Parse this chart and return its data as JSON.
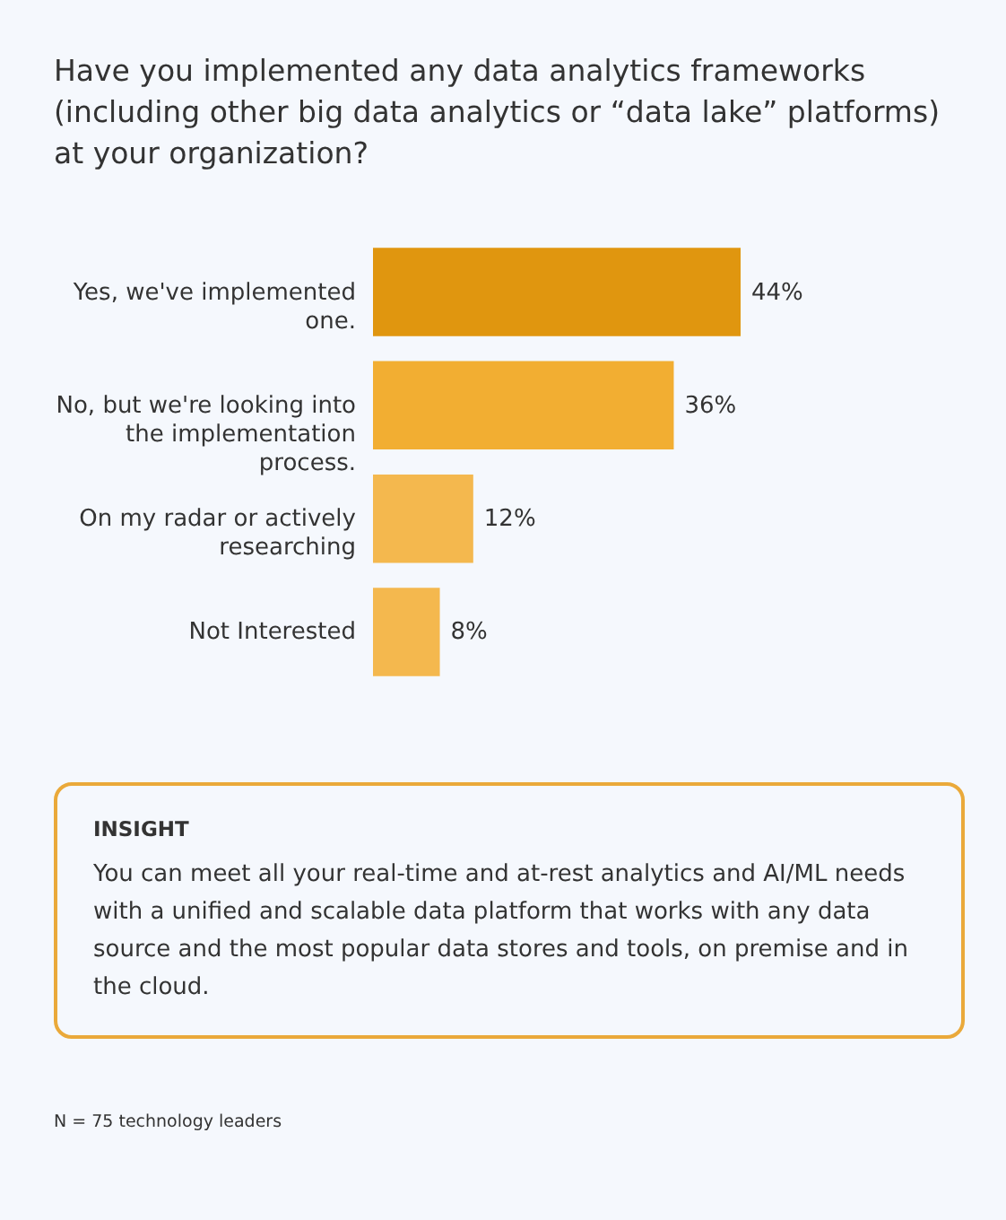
{
  "chart_data": {
    "type": "bar",
    "orientation": "horizontal",
    "title": "Have you implemented any data analytics frameworks (including other big data analytics or “data lake” platforms) at your organization?",
    "categories": [
      "Yes, we've implemented one.",
      "No, but we're looking into the implementation process.",
      "On my radar or actively researching",
      "Not Interested"
    ],
    "values": [
      44,
      36,
      12,
      8
    ],
    "colors": [
      "#e0960f",
      "#f2ae32",
      "#f4b84e",
      "#f4b84e"
    ],
    "value_labels": [
      "44%",
      "36%",
      "12%",
      "8%"
    ],
    "annotations": [
      "INSIGHT",
      "You can meet all your real-time and at-rest analytics and AI/ML needs with a unified and scalable data platform that works with any data source and the most popular data stores and tools, on premise and in the cloud.",
      "N = 75 technology leaders"
    ]
  }
}
